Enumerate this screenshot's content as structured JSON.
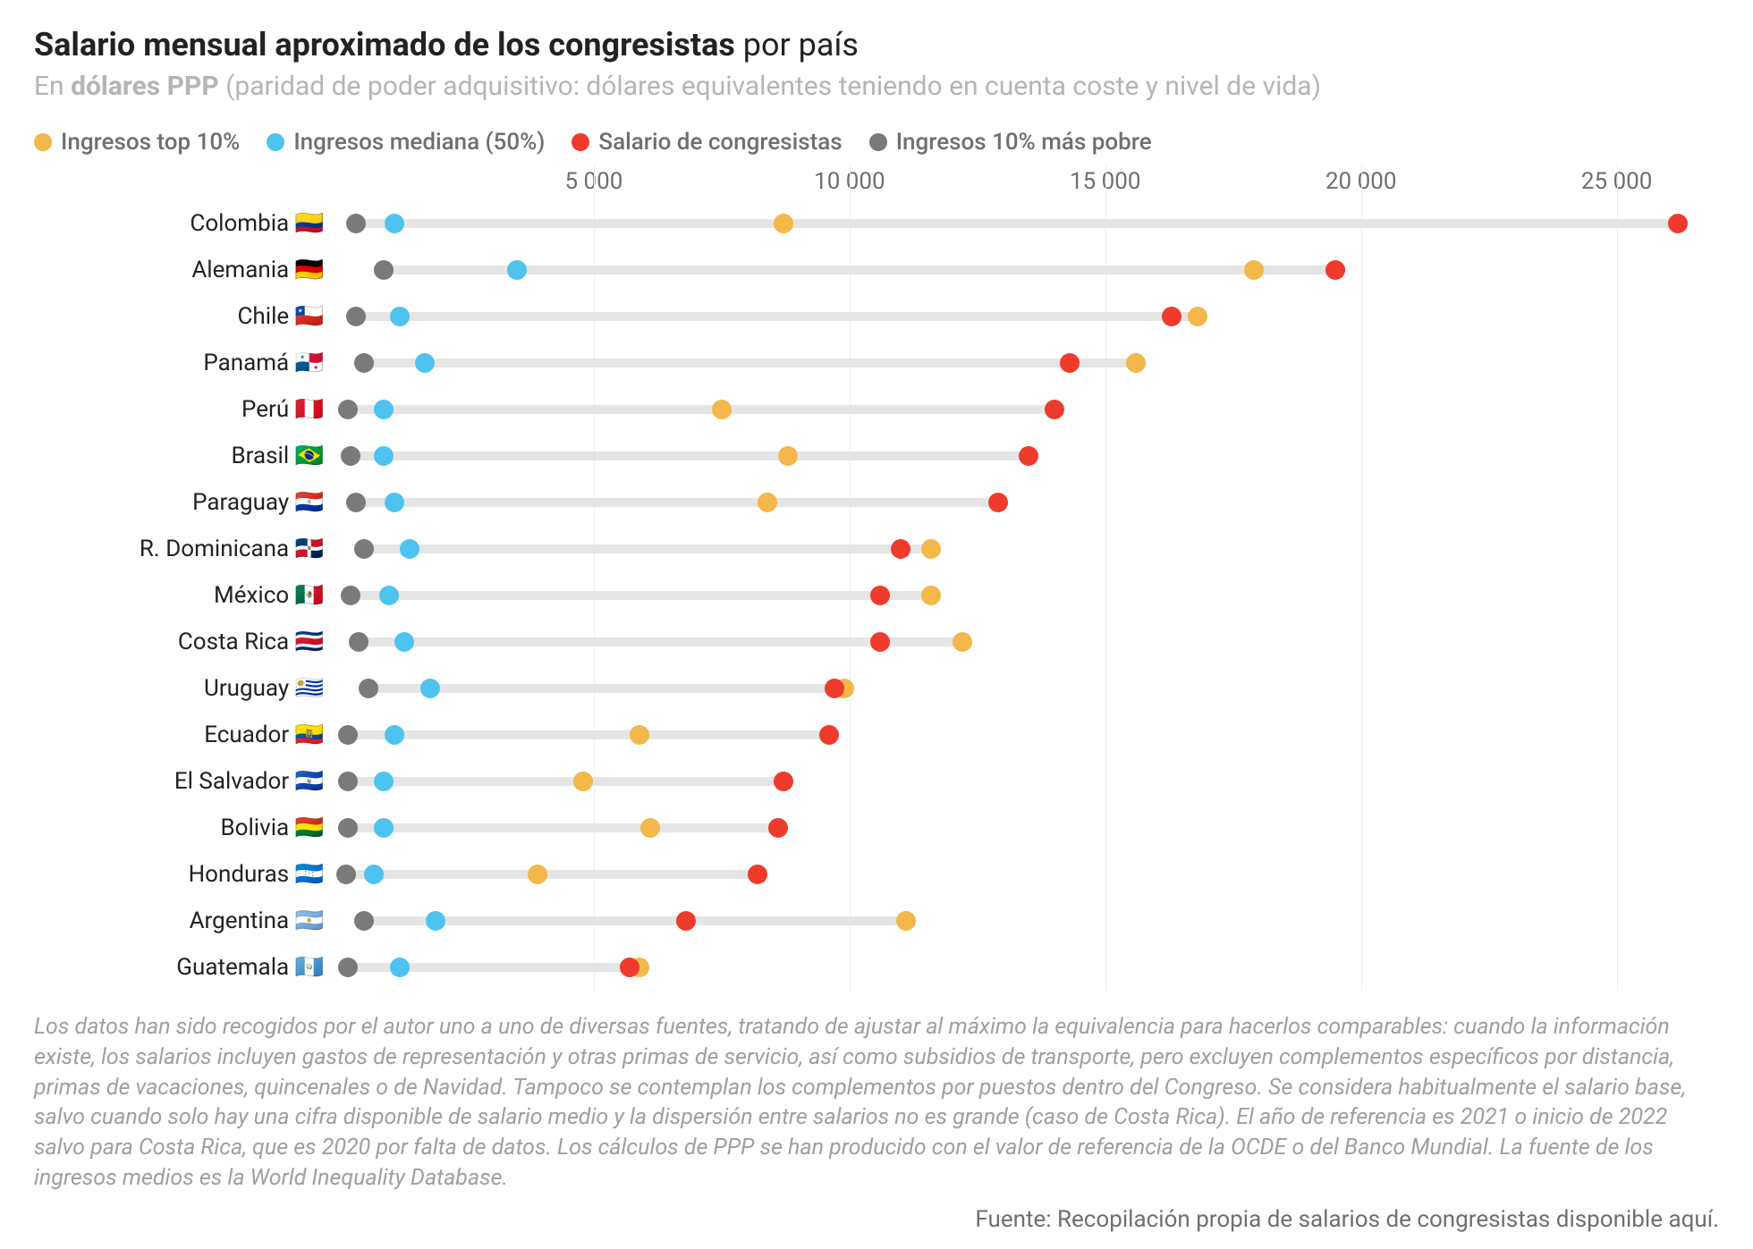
{
  "title": {
    "bold": "Salario mensual aproximado de los congresistas",
    "light": " por país"
  },
  "subtitle": {
    "prefix": "En ",
    "bold": "dólares PPP",
    "paren": " (paridad de poder adquisitivo: dólares equivalentes teniendo en cuenta coste y nivel de vida)"
  },
  "legend": [
    {
      "id": "top10",
      "label": "Ingresos top 10%",
      "color": "#f3b74a"
    },
    {
      "id": "median",
      "label": "Ingresos mediana (50%)",
      "color": "#4ec3f0"
    },
    {
      "id": "congress",
      "label": "Salario de congresistas",
      "color": "#ef3b2c"
    },
    {
      "id": "bottom10",
      "label": "Ingresos 10% más pobre",
      "color": "#7a7a7a"
    }
  ],
  "axis": {
    "min": 0,
    "max": 27000,
    "ticks": [
      5000,
      10000,
      15000,
      20000,
      25000
    ],
    "tick_labels": [
      "5 000",
      "10 000",
      "15 000",
      "20 000",
      "25 000"
    ]
  },
  "track_color": "#e5e5e5",
  "grid_color": "#eeeeee",
  "countries": [
    {
      "label": "Colombia 🇨🇴",
      "bottom10": 350,
      "median": 1100,
      "top10": 8700,
      "congress": 26200
    },
    {
      "label": "Alemania 🇩🇪",
      "bottom10": 900,
      "median": 3500,
      "top10": 17900,
      "congress": 19500
    },
    {
      "label": "Chile 🇨🇱",
      "bottom10": 350,
      "median": 1200,
      "top10": 16800,
      "congress": 16300
    },
    {
      "label": "Panamá 🇵🇦",
      "bottom10": 500,
      "median": 1700,
      "top10": 15600,
      "congress": 14300
    },
    {
      "label": "Perú 🇵🇪",
      "bottom10": 200,
      "median": 900,
      "top10": 7500,
      "congress": 14000
    },
    {
      "label": "Brasil 🇧🇷",
      "bottom10": 250,
      "median": 900,
      "top10": 8800,
      "congress": 13500
    },
    {
      "label": "Paraguay 🇵🇾",
      "bottom10": 350,
      "median": 1100,
      "top10": 8400,
      "congress": 12900
    },
    {
      "label": "R. Dominicana 🇩🇴",
      "bottom10": 500,
      "median": 1400,
      "top10": 11600,
      "congress": 11000
    },
    {
      "label": "México 🇲🇽",
      "bottom10": 250,
      "median": 1000,
      "top10": 11600,
      "congress": 10600
    },
    {
      "label": "Costa Rica 🇨🇷",
      "bottom10": 400,
      "median": 1300,
      "top10": 12200,
      "congress": 10600
    },
    {
      "label": "Uruguay 🇺🇾",
      "bottom10": 600,
      "median": 1800,
      "top10": 9900,
      "congress": 9700
    },
    {
      "label": "Ecuador 🇪🇨",
      "bottom10": 200,
      "median": 1100,
      "top10": 5900,
      "congress": 9600
    },
    {
      "label": "El Salvador 🇸🇻",
      "bottom10": 200,
      "median": 900,
      "top10": 4800,
      "congress": 8700
    },
    {
      "label": "Bolivia 🇧🇴",
      "bottom10": 200,
      "median": 900,
      "top10": 6100,
      "congress": 8600
    },
    {
      "label": "Honduras 🇭🇳",
      "bottom10": 150,
      "median": 700,
      "top10": 3900,
      "congress": 8200
    },
    {
      "label": "Argentina 🇦🇷",
      "bottom10": 500,
      "median": 1900,
      "top10": 11100,
      "congress": 6800
    },
    {
      "label": "Guatemala 🇬🇹",
      "bottom10": 200,
      "median": 1200,
      "top10": 5900,
      "congress": 5700
    }
  ],
  "series_order": [
    "bottom10",
    "median",
    "top10",
    "congress"
  ],
  "note": "Los datos han sido recogidos por el autor uno a uno de diversas fuentes, tratando de ajustar al máximo la equivalencia para hacerlos comparables: cuando la información existe, los salarios incluyen gastos de representación y otras primas de servicio, así como subsidios de transporte, pero excluyen complementos específicos por distancia, primas de vacaciones, quincenales o de Navidad. Tampoco se contemplan los complementos por puestos dentro del Congreso. Se considera habitualmente el salario base, salvo cuando solo hay una cifra disponible de salario medio y la dispersión entre salarios no es grande (caso de Costa Rica). El año de referencia es 2021 o inicio de 2022 salvo para Costa Rica, que es 2020 por falta de datos. Los cálculos de PPP se han producido con el valor de referencia de la OCDE o del Banco Mundial. La fuente de los ingresos medios es la World Inequality Database.",
  "source": "Fuente: Recopilación propia de salarios de congresistas disponible aquí."
}
